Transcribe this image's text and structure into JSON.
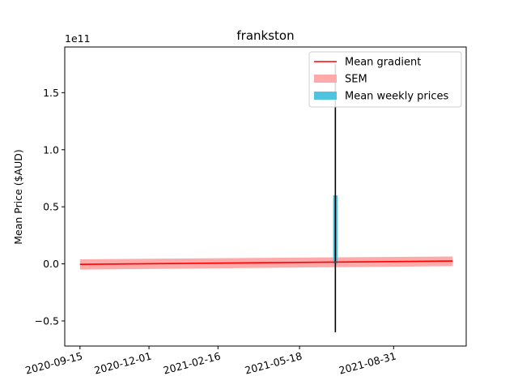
{
  "chart_data": {
    "type": "line",
    "title": "frankston",
    "xlabel": "",
    "ylabel": "Mean Price ($AUD)",
    "y_scale_label": "1e11",
    "ylim": [
      -72000000000.0,
      190000000000.0
    ],
    "xlim": [
      "2020-08-29",
      "2021-11-20"
    ],
    "x_ticks": [
      "2020-09-15",
      "2020-12-01",
      "2021-02-16",
      "2021-05-18",
      "2021-08-31"
    ],
    "y_ticks": [
      {
        "value": -50000000000.0,
        "label": "−0.5"
      },
      {
        "value": 0.0,
        "label": "0.0"
      },
      {
        "value": 50000000000.0,
        "label": "0.5"
      },
      {
        "value": 100000000000.0,
        "label": "1.0"
      },
      {
        "value": 150000000000.0,
        "label": "1.5"
      }
    ],
    "grid": false,
    "legend_position": "top-right",
    "series": [
      {
        "name": "Mean gradient",
        "kind": "line",
        "color": "#ff0000",
        "x": [
          "2020-09-15",
          "2021-11-05"
        ],
        "y": [
          -400000000.0,
          2500000000.0
        ]
      },
      {
        "name": "SEM",
        "kind": "band",
        "color": "#ffaaaa",
        "x": [
          "2020-09-15",
          "2021-11-05"
        ],
        "y_low": [
          -5000000000.0,
          -2000000000.0
        ],
        "y_high": [
          4000000000.0,
          6500000000.0
        ]
      },
      {
        "name": "Mean weekly prices",
        "kind": "bar",
        "color": "#4fc3e0",
        "x": [
          "2021-06-27"
        ],
        "values": [
          60000000000.0
        ],
        "width_days": 5
      }
    ],
    "error_bars": [
      {
        "x": "2021-06-27",
        "y_low": -60000000000.0,
        "y_high": 175000000000.0,
        "color": "#000000"
      }
    ]
  }
}
